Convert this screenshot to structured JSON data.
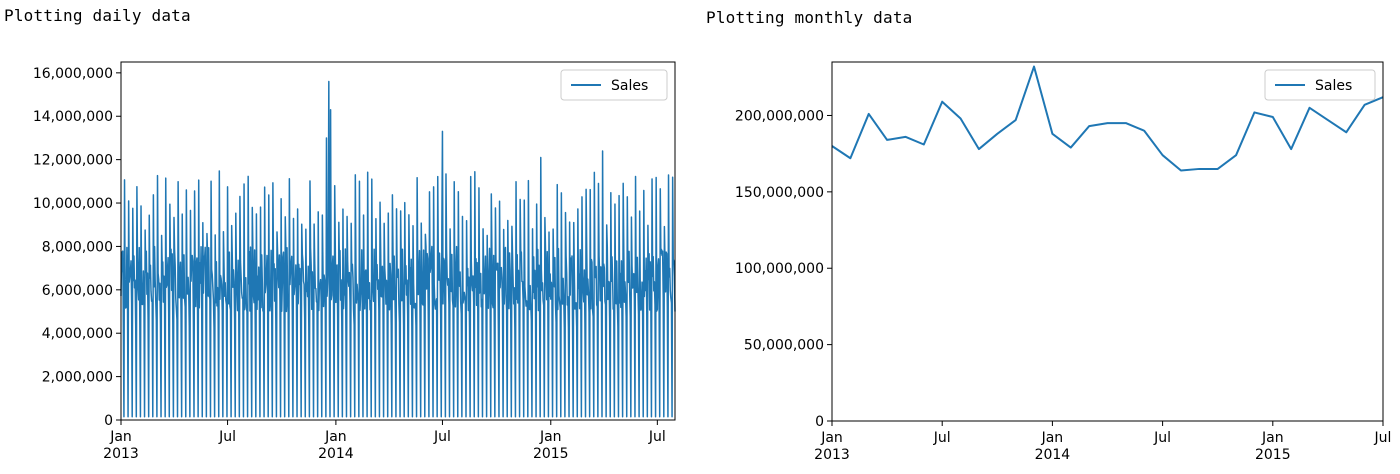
{
  "captions": {
    "daily": "Plotting daily data",
    "monthly": "Plotting monthly data"
  },
  "colors": {
    "series": "#1f77b4",
    "axes": "#000000",
    "legend_border": "#cccccc"
  },
  "chart_data": [
    {
      "type": "line",
      "title": "",
      "xlabel": "",
      "ylabel": "",
      "grid": false,
      "legend": {
        "position": "top-right",
        "entries": [
          "Sales"
        ]
      },
      "x_range": [
        "2013-01-01",
        "2015-07-31"
      ],
      "ylim": [
        0,
        16500000
      ],
      "y_ticks": [
        {
          "value": 0,
          "label": "0"
        },
        {
          "value": 2000000,
          "label": "2,000,000"
        },
        {
          "value": 4000000,
          "label": "4,000,000"
        },
        {
          "value": 6000000,
          "label": "6,000,000"
        },
        {
          "value": 8000000,
          "label": "8,000,000"
        },
        {
          "value": 10000000,
          "label": "10,000,000"
        },
        {
          "value": 12000000,
          "label": "12,000,000"
        },
        {
          "value": 14000000,
          "label": "14,000,000"
        },
        {
          "value": 16000000,
          "label": "16,000,000"
        }
      ],
      "x_ticks": [
        {
          "date": "2013-01-01",
          "label": "Jan",
          "sublabel": "2013"
        },
        {
          "date": "2013-07-01",
          "label": "Jul",
          "sublabel": ""
        },
        {
          "date": "2014-01-01",
          "label": "Jan",
          "sublabel": "2014"
        },
        {
          "date": "2014-07-01",
          "label": "Jul",
          "sublabel": ""
        },
        {
          "date": "2015-01-01",
          "label": "Jan",
          "sublabel": "2015"
        },
        {
          "date": "2015-07-01",
          "label": "Jul",
          "sublabel": ""
        }
      ],
      "series": [
        {
          "name": "Sales",
          "frequency": "daily",
          "start": "2013-01-01",
          "end": "2015-07-31",
          "weekly_pattern": {
            "sunday": 150000,
            "weekday_typical_range": [
              5000000,
              8000000
            ],
            "weekly_peak_typical_range": [
              8500000,
              11500000
            ]
          },
          "notable_peaks": [
            {
              "date": "2013-12-16",
              "value": 13000000
            },
            {
              "date": "2013-12-20",
              "value": 15600000
            },
            {
              "date": "2013-12-23",
              "value": 14300000
            },
            {
              "date": "2014-07-01",
              "value": 13300000
            },
            {
              "date": "2014-12-15",
              "value": 12100000
            },
            {
              "date": "2015-03-30",
              "value": 12400000
            }
          ]
        }
      ]
    },
    {
      "type": "line",
      "title": "",
      "xlabel": "",
      "ylabel": "",
      "grid": false,
      "legend": {
        "position": "top-right",
        "entries": [
          "Sales"
        ]
      },
      "ylim": [
        0,
        235000000
      ],
      "y_ticks": [
        {
          "value": 0,
          "label": "0"
        },
        {
          "value": 50000000,
          "label": "50,000,000"
        },
        {
          "value": 100000000,
          "label": "100,000,000"
        },
        {
          "value": 150000000,
          "label": "150,000,000"
        },
        {
          "value": 200000000,
          "label": "200,000,000"
        }
      ],
      "x_ticks": [
        {
          "date": "2013-01",
          "label": "Jan",
          "sublabel": "2013"
        },
        {
          "date": "2013-07",
          "label": "Jul",
          "sublabel": ""
        },
        {
          "date": "2014-01",
          "label": "Jan",
          "sublabel": "2014"
        },
        {
          "date": "2014-07",
          "label": "Jul",
          "sublabel": ""
        },
        {
          "date": "2015-01",
          "label": "Jan",
          "sublabel": "2015"
        },
        {
          "date": "2015-07",
          "label": "Jul",
          "sublabel": ""
        }
      ],
      "x": [
        "2013-01",
        "2013-02",
        "2013-03",
        "2013-04",
        "2013-05",
        "2013-06",
        "2013-07",
        "2013-08",
        "2013-09",
        "2013-10",
        "2013-11",
        "2013-12",
        "2014-01",
        "2014-02",
        "2014-03",
        "2014-04",
        "2014-05",
        "2014-06",
        "2014-07",
        "2014-08",
        "2014-09",
        "2014-10",
        "2014-11",
        "2014-12",
        "2015-01",
        "2015-02",
        "2015-03",
        "2015-04",
        "2015-05",
        "2015-06",
        "2015-07"
      ],
      "series": [
        {
          "name": "Sales",
          "values": [
            180000000,
            172000000,
            201000000,
            184000000,
            186000000,
            181000000,
            209000000,
            198000000,
            178000000,
            188000000,
            197000000,
            232000000,
            188000000,
            179000000,
            193000000,
            195000000,
            195000000,
            190000000,
            174000000,
            164000000,
            165000000,
            165000000,
            174000000,
            202000000,
            199000000,
            178000000,
            205000000,
            197000000,
            189000000,
            207000000,
            212000000
          ]
        }
      ]
    }
  ]
}
